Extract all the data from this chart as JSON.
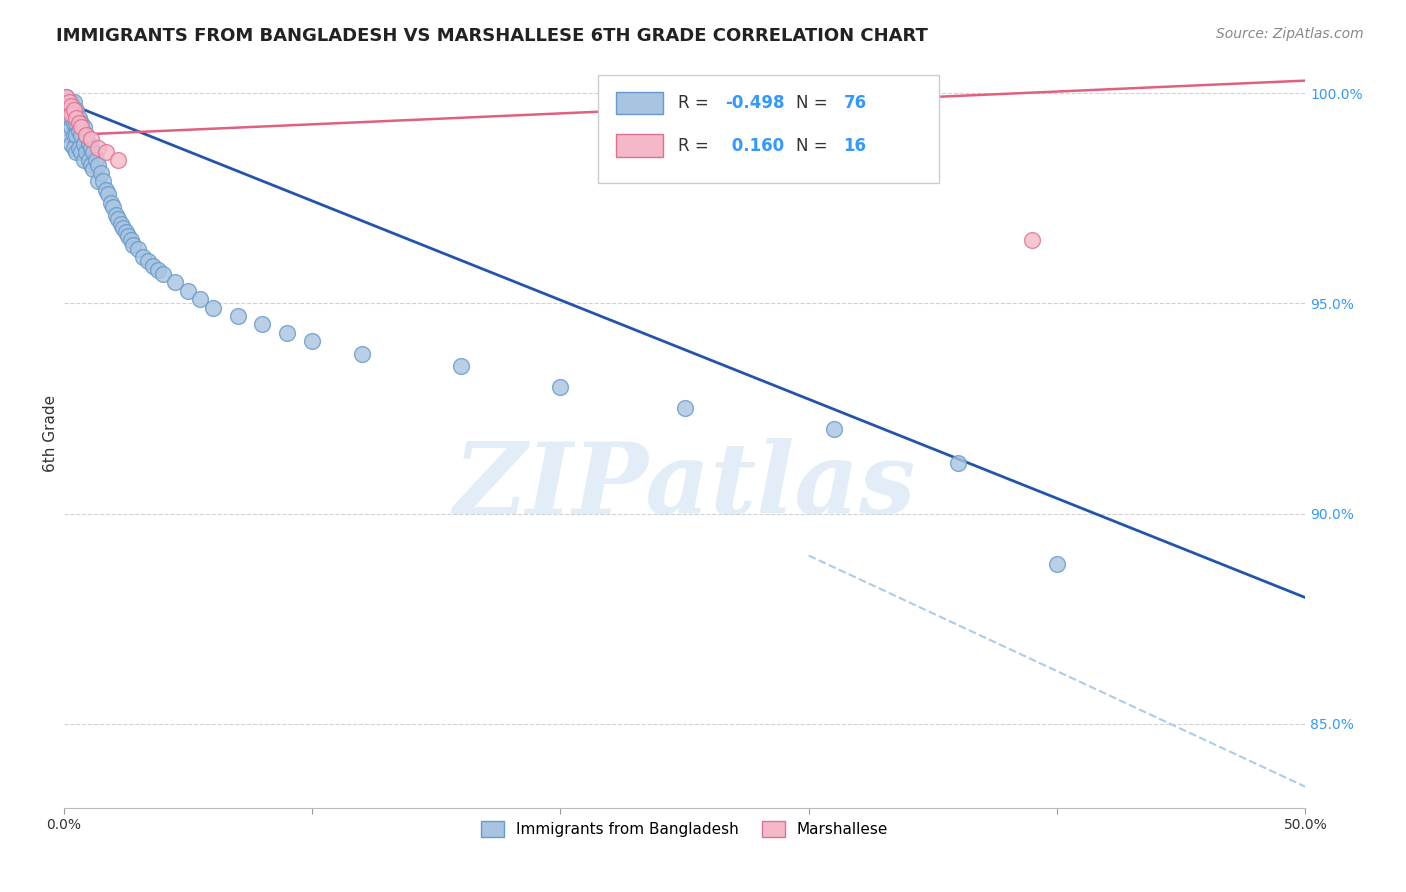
{
  "title": "IMMIGRANTS FROM BANGLADESH VS MARSHALLESE 6TH GRADE CORRELATION CHART",
  "source": "Source: ZipAtlas.com",
  "ylabel": "6th Grade",
  "xlim": [
    0.0,
    0.5
  ],
  "ylim": [
    0.83,
    1.008
  ],
  "bg_color": "#ffffff",
  "grid_color": "#cccccc",
  "blue_dot_color": "#a8c4e0",
  "blue_dot_edge": "#6699cc",
  "pink_dot_color": "#f4b8c8",
  "pink_dot_edge": "#e07090",
  "blue_line_color": "#2255aa",
  "pink_line_color": "#e06080",
  "dashed_line_color": "#aaccee",
  "watermark": "ZIPatlas",
  "blue_scatter_x": [
    0.001,
    0.001,
    0.001,
    0.002,
    0.002,
    0.002,
    0.002,
    0.003,
    0.003,
    0.003,
    0.003,
    0.003,
    0.004,
    0.004,
    0.004,
    0.004,
    0.004,
    0.005,
    0.005,
    0.005,
    0.005,
    0.006,
    0.006,
    0.006,
    0.007,
    0.007,
    0.007,
    0.008,
    0.008,
    0.008,
    0.009,
    0.009,
    0.01,
    0.01,
    0.011,
    0.011,
    0.012,
    0.012,
    0.013,
    0.014,
    0.014,
    0.015,
    0.016,
    0.017,
    0.018,
    0.019,
    0.02,
    0.021,
    0.022,
    0.023,
    0.024,
    0.025,
    0.026,
    0.027,
    0.028,
    0.03,
    0.032,
    0.034,
    0.036,
    0.038,
    0.04,
    0.045,
    0.05,
    0.055,
    0.06,
    0.07,
    0.08,
    0.09,
    0.1,
    0.12,
    0.16,
    0.2,
    0.25,
    0.31,
    0.36,
    0.4
  ],
  "blue_scatter_y": [
    0.999,
    0.997,
    0.995,
    0.998,
    0.996,
    0.994,
    0.99,
    0.998,
    0.996,
    0.994,
    0.992,
    0.988,
    0.998,
    0.996,
    0.993,
    0.99,
    0.987,
    0.996,
    0.993,
    0.99,
    0.986,
    0.994,
    0.991,
    0.987,
    0.993,
    0.99,
    0.986,
    0.992,
    0.988,
    0.984,
    0.99,
    0.986,
    0.988,
    0.984,
    0.987,
    0.983,
    0.986,
    0.982,
    0.984,
    0.983,
    0.979,
    0.981,
    0.979,
    0.977,
    0.976,
    0.974,
    0.973,
    0.971,
    0.97,
    0.969,
    0.968,
    0.967,
    0.966,
    0.965,
    0.964,
    0.963,
    0.961,
    0.96,
    0.959,
    0.958,
    0.957,
    0.955,
    0.953,
    0.951,
    0.949,
    0.947,
    0.945,
    0.943,
    0.941,
    0.938,
    0.935,
    0.93,
    0.925,
    0.92,
    0.912,
    0.888
  ],
  "pink_scatter_x": [
    0.001,
    0.001,
    0.002,
    0.002,
    0.003,
    0.003,
    0.004,
    0.005,
    0.006,
    0.007,
    0.009,
    0.011,
    0.014,
    0.017,
    0.022,
    0.39
  ],
  "pink_scatter_y": [
    0.999,
    0.997,
    0.998,
    0.996,
    0.997,
    0.995,
    0.996,
    0.994,
    0.993,
    0.992,
    0.99,
    0.989,
    0.987,
    0.986,
    0.984,
    0.965
  ],
  "blue_line_x": [
    0.0,
    0.5
  ],
  "blue_line_y": [
    0.998,
    0.88
  ],
  "pink_line_x": [
    0.0,
    0.5
  ],
  "pink_line_y": [
    0.99,
    1.003
  ],
  "dashed_line_x": [
    0.3,
    0.5
  ],
  "dashed_line_y": [
    0.89,
    0.835
  ],
  "title_fontsize": 13,
  "source_fontsize": 10,
  "axis_label_fontsize": 11,
  "tick_fontsize": 10,
  "legend_fontsize": 12
}
